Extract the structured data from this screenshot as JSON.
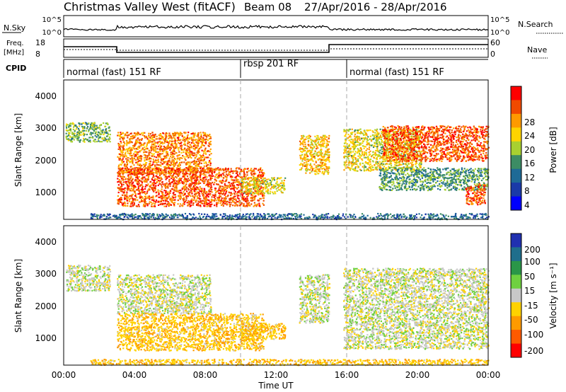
{
  "title": {
    "station": "Christmas Valley West (fitACF)",
    "beam": "Beam 08",
    "dates": "27/Apr/2016 - 28/Apr/2016"
  },
  "nsky_panel": {
    "left_label": "N.Sky",
    "left_ticks": [
      "10^5",
      "10^0"
    ],
    "right_ticks": [
      "10^5",
      "10^0"
    ],
    "right_label": "N.Search"
  },
  "freq_panel": {
    "left_label_1": "Freq.",
    "left_label_2": "[MHz]",
    "left_ticks": [
      "18",
      "8"
    ],
    "right_ticks": [
      "60",
      "0"
    ],
    "right_label": "Nave"
  },
  "cpid": {
    "label": "CPID",
    "segments": [
      {
        "start_hour": 0,
        "text": "normal (fast) 151 RF"
      },
      {
        "start_hour": 10,
        "text": "rbsp 201 RF"
      },
      {
        "start_hour": 16,
        "text": "normal (fast) 151 RF"
      }
    ]
  },
  "power_colorbar": {
    "label": "Power [dB]",
    "ticks": [
      "28",
      "24",
      "20",
      "16",
      "12",
      "8",
      "4"
    ],
    "colors": [
      "#ff0000",
      "#f04a00",
      "#ff9a00",
      "#ffd400",
      "#a8d030",
      "#3c8c64",
      "#1e6a96",
      "#1a3aa8",
      "#0000ff"
    ]
  },
  "velocity_colorbar": {
    "label": "Velocity [m s⁻¹]",
    "ticks": [
      "200",
      "100",
      "50",
      "15",
      "-15",
      "-50",
      "-100",
      "-200"
    ],
    "colors": [
      "#2030b0",
      "#1f6e8c",
      "#2a9648",
      "#6fd040",
      "#c8c8c8",
      "#ffd200",
      "#ff9a00",
      "#ff5a00",
      "#ff0000"
    ]
  },
  "chart_data": [
    {
      "type": "heatmap",
      "title": "Power",
      "xlabel": "",
      "ylabel": "Slant Range [km]",
      "xlim_hours": [
        0,
        24
      ],
      "ylim_km": [
        180,
        4500
      ],
      "yticks": [
        "1000",
        "2000",
        "3000",
        "4000"
      ],
      "dashed_markers_hours": [
        10,
        16
      ],
      "scatter_bands": [
        {
          "t0": 0.1,
          "t1": 2.6,
          "r0": 2600,
          "r1": 3200,
          "value_db": 14
        },
        {
          "t0": 3.0,
          "t1": 8.3,
          "r0": 1600,
          "r1": 2900,
          "value_db": 24
        },
        {
          "t0": 3.0,
          "t1": 11.3,
          "r0": 600,
          "r1": 1800,
          "value_db": 26
        },
        {
          "t0": 10.0,
          "t1": 12.5,
          "r0": 1000,
          "r1": 1500,
          "value_db": 18
        },
        {
          "t0": 13.3,
          "t1": 15.0,
          "r0": 1600,
          "r1": 2800,
          "value_db": 20
        },
        {
          "t0": 15.8,
          "t1": 20.2,
          "r0": 1700,
          "r1": 3000,
          "value_db": 18
        },
        {
          "t0": 18.0,
          "t1": 24.0,
          "r0": 2000,
          "r1": 3100,
          "value_db": 26
        },
        {
          "t0": 17.8,
          "t1": 24.0,
          "r0": 1100,
          "r1": 1800,
          "value_db": 12
        },
        {
          "t0": 22.7,
          "t1": 23.8,
          "r0": 650,
          "r1": 1300,
          "value_db": 26
        },
        {
          "t0": 1.5,
          "t1": 24.0,
          "r0": 200,
          "r1": 380,
          "value_db": 8
        }
      ]
    },
    {
      "type": "heatmap",
      "title": "Velocity",
      "xlabel": "Time UT",
      "ylabel": "Slant Range [km]",
      "xlim_hours": [
        0,
        24
      ],
      "ylim_km": [
        180,
        4500
      ],
      "yticks": [
        "1000",
        "2000",
        "3000",
        "4000"
      ],
      "xticks": [
        "00:00",
        "04:00",
        "08:00",
        "12:00",
        "16:00",
        "20:00",
        "00:00"
      ],
      "dashed_markers_hours": [
        10,
        16
      ],
      "scatter_bands": [
        {
          "t0": 0.1,
          "t1": 2.6,
          "r0": 2500,
          "r1": 3300,
          "value_ms": 0
        },
        {
          "t0": 3.0,
          "t1": 8.3,
          "r0": 1800,
          "r1": 3000,
          "value_ms": 0
        },
        {
          "t0": 3.0,
          "t1": 11.3,
          "r0": 650,
          "r1": 1800,
          "value_ms": -40
        },
        {
          "t0": 10.0,
          "t1": 12.5,
          "r0": 1000,
          "r1": 1500,
          "value_ms": -40
        },
        {
          "t0": 13.3,
          "t1": 15.0,
          "r0": 1500,
          "r1": 3000,
          "value_ms": 0
        },
        {
          "t0": 15.8,
          "t1": 24.0,
          "r0": 700,
          "r1": 3200,
          "value_ms": 0
        },
        {
          "t0": 1.5,
          "t1": 24.0,
          "r0": 200,
          "r1": 380,
          "value_ms": -40
        }
      ]
    }
  ]
}
